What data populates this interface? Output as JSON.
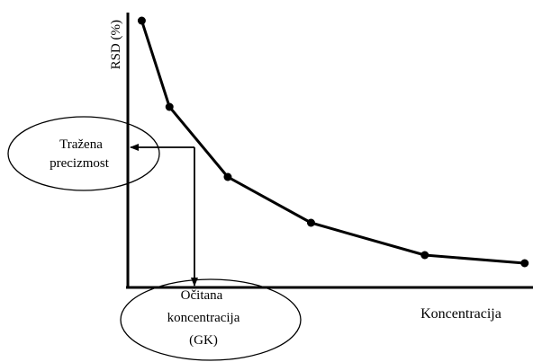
{
  "chart_data": {
    "type": "line",
    "xlabel": "Koncentracija",
    "ylabel": "RSD (%)",
    "series": [
      {
        "points": [
          {
            "x": 0.5,
            "y": 99
          },
          {
            "x": 1.5,
            "y": 67
          },
          {
            "x": 3.6,
            "y": 41
          },
          {
            "x": 6.6,
            "y": 24
          },
          {
            "x": 10.7,
            "y": 12
          },
          {
            "x": 14.3,
            "y": 9
          }
        ]
      }
    ],
    "xlim": [
      0,
      14.6
    ],
    "ylim": [
      0,
      100
    ],
    "grid": false,
    "annotations": {
      "required_precision": {
        "label_line1": "Tražena",
        "label_line2": "precizmost",
        "y": 52
      },
      "read_concentration": {
        "label_line1": "Očitana",
        "label_line2": "koncentracija",
        "label_line3": "(GK)",
        "x": 2.4
      }
    }
  }
}
